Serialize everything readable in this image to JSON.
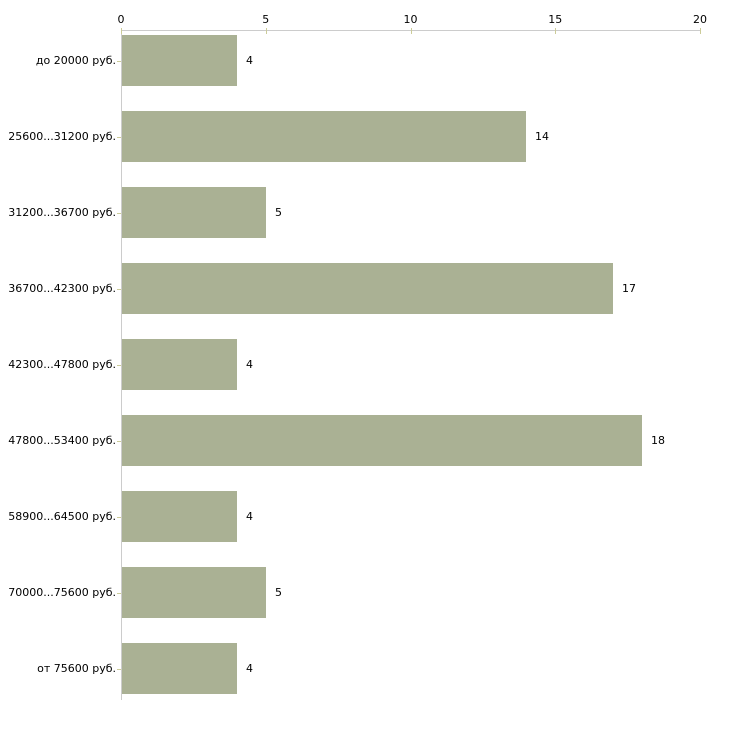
{
  "chart_data": {
    "type": "bar",
    "orientation": "horizontal",
    "title": "",
    "xlabel": "",
    "ylabel": "",
    "categories": [
      "до 20000 руб.",
      "25600...31200 руб.",
      "31200...36700 руб.",
      "36700...42300 руб.",
      "42300...47800 руб.",
      "47800...53400 руб.",
      "58900...64500 руб.",
      "70000...75600 руб.",
      "от 75600 руб."
    ],
    "values": [
      4,
      14,
      5,
      17,
      4,
      18,
      4,
      5,
      4
    ],
    "xlim": [
      0,
      20
    ],
    "x_ticks": [
      "0",
      "5",
      "10",
      "15",
      "20"
    ],
    "x_tick_values": [
      0,
      5,
      10,
      15,
      20
    ],
    "axis_position": "top",
    "grid": false,
    "legend": false,
    "data_labels": true,
    "colors": {
      "bar_fill": "#aab194",
      "axis_line": "#cccccc",
      "tick_mark": "#cccc99",
      "text": "#000000",
      "background": "#ffffff"
    }
  }
}
